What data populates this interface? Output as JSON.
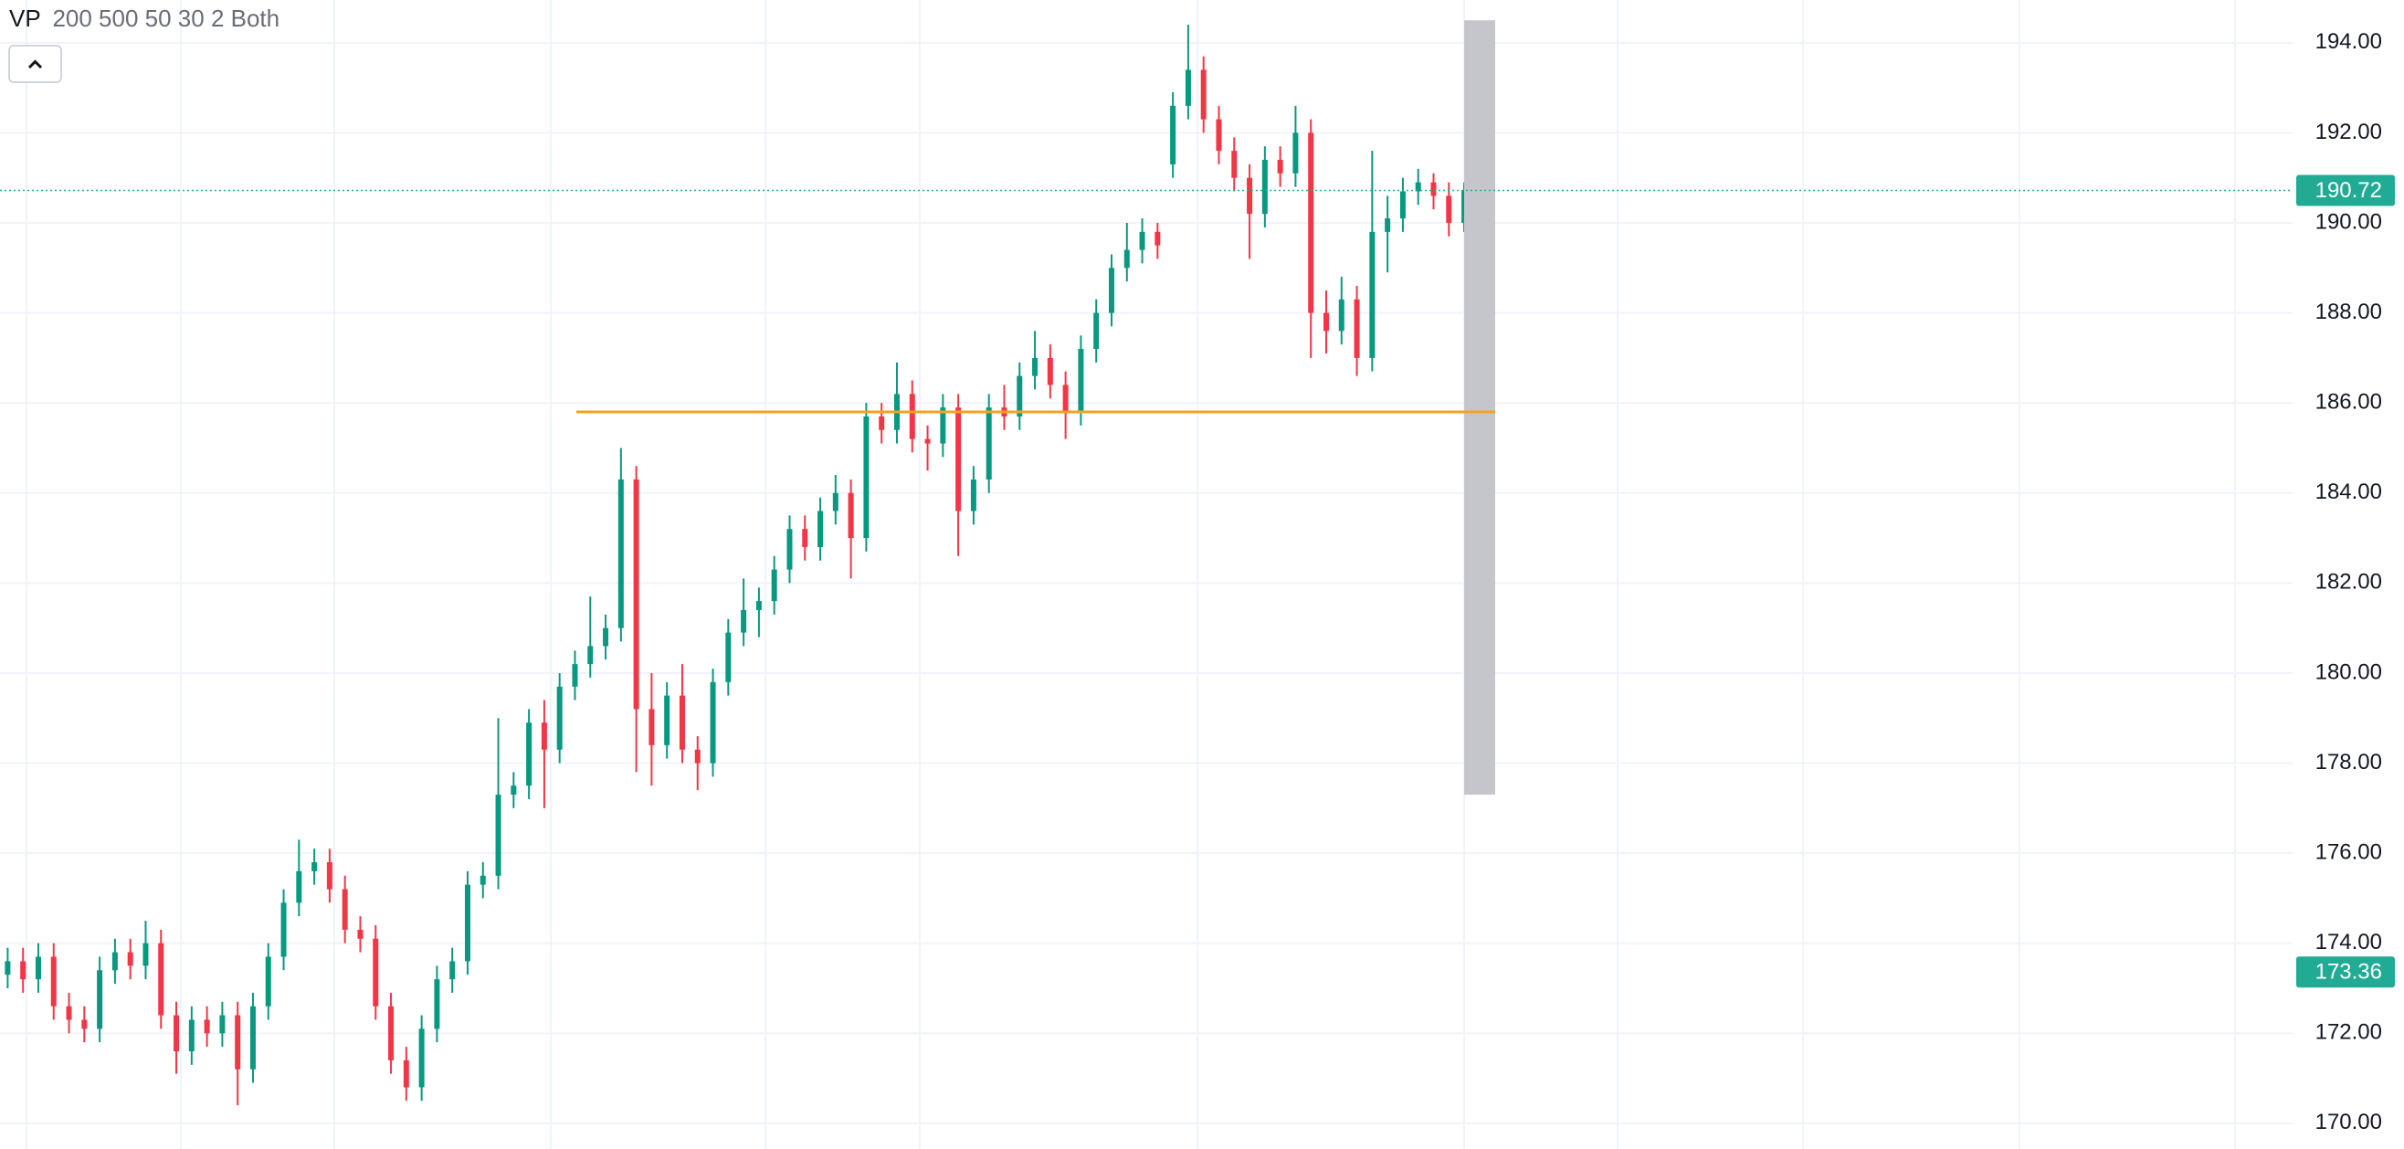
{
  "chart_data": {
    "type": "candlestick",
    "indicator": {
      "name": "VP",
      "params": "200 500 50 30 2 Both"
    },
    "up_color": "#089981",
    "down_color": "#f23645",
    "ylim": [
      169.43,
      194.95
    ],
    "yticks": [
      {
        "value": 170,
        "label": "170.00"
      },
      {
        "value": 172,
        "label": "172.00"
      },
      {
        "value": 174,
        "label": "174.00"
      },
      {
        "value": 176,
        "label": "176.00"
      },
      {
        "value": 178,
        "label": "178.00"
      },
      {
        "value": 180,
        "label": "180.00"
      },
      {
        "value": 182,
        "label": "182.00"
      },
      {
        "value": 184,
        "label": "184.00"
      },
      {
        "value": 186,
        "label": "186.00"
      },
      {
        "value": 188,
        "label": "188.00"
      },
      {
        "value": 190,
        "label": "190.00"
      },
      {
        "value": 192,
        "label": "192.00"
      },
      {
        "value": 194,
        "label": "194.00"
      }
    ],
    "grid": true,
    "open": [
      173.3,
      173.6,
      173.2,
      173.7,
      172.6,
      172.3,
      172.1,
      173.4,
      173.8,
      173.5,
      174.0,
      172.4,
      171.6,
      172.3,
      172.0,
      172.4,
      171.2,
      172.6,
      173.7,
      174.9,
      175.6,
      175.8,
      175.2,
      174.3,
      174.1,
      172.6,
      171.4,
      170.8,
      172.1,
      173.2,
      173.6,
      175.3,
      175.5,
      177.3,
      177.5,
      178.9,
      178.3,
      179.7,
      180.2,
      180.6,
      181.0,
      184.3,
      179.2,
      178.4,
      179.5,
      178.3,
      178.0,
      179.8,
      180.9,
      181.4,
      181.6,
      182.3,
      183.2,
      182.8,
      183.6,
      184.0,
      183.0,
      185.7,
      185.4,
      186.2,
      185.2,
      185.1,
      185.9,
      183.6,
      184.3,
      185.9,
      185.7,
      186.6,
      187.0,
      186.4,
      185.8,
      187.2,
      188.0,
      189.0,
      189.4,
      189.8,
      191.3,
      192.6,
      193.4,
      192.3,
      191.6,
      191.0,
      190.2,
      191.4,
      191.1,
      192.0,
      188.0,
      187.6,
      188.3,
      187.0,
      189.8,
      190.1,
      190.7,
      190.9,
      190.6,
      190.0
    ],
    "high": [
      173.9,
      173.9,
      174.0,
      174.0,
      172.9,
      172.6,
      173.7,
      174.1,
      174.1,
      174.5,
      174.3,
      172.7,
      172.6,
      172.6,
      172.7,
      172.7,
      172.9,
      174.0,
      175.2,
      176.3,
      176.1,
      176.1,
      175.5,
      174.6,
      174.4,
      172.9,
      171.7,
      172.4,
      173.5,
      173.9,
      175.6,
      175.8,
      179.0,
      177.8,
      179.2,
      179.4,
      180.0,
      180.5,
      181.7,
      181.3,
      185.0,
      184.6,
      180.0,
      179.8,
      180.2,
      178.6,
      180.1,
      181.2,
      182.1,
      181.9,
      182.6,
      183.5,
      183.5,
      183.9,
      184.4,
      184.3,
      186.0,
      186.0,
      186.9,
      186.5,
      185.5,
      186.2,
      186.2,
      184.6,
      186.2,
      186.4,
      186.9,
      187.6,
      187.3,
      186.7,
      187.5,
      188.3,
      189.3,
      190.0,
      190.1,
      190.0,
      192.9,
      194.4,
      193.7,
      192.6,
      191.9,
      191.3,
      191.7,
      191.7,
      192.6,
      192.3,
      188.5,
      188.8,
      188.6,
      191.6,
      190.6,
      191.0,
      191.2,
      191.1,
      190.9,
      190.9
    ],
    "low": [
      173.0,
      172.9,
      172.9,
      172.3,
      172.0,
      171.8,
      171.8,
      173.1,
      173.2,
      173.2,
      172.1,
      171.1,
      171.3,
      171.7,
      171.7,
      170.4,
      170.9,
      172.3,
      173.4,
      174.6,
      175.3,
      174.9,
      174.0,
      173.8,
      172.3,
      171.1,
      170.5,
      170.5,
      171.8,
      172.9,
      173.3,
      175.0,
      175.2,
      177.0,
      177.2,
      177.0,
      178.0,
      179.4,
      179.9,
      180.3,
      180.7,
      177.8,
      177.5,
      178.1,
      178.0,
      177.4,
      177.7,
      179.5,
      180.6,
      180.8,
      181.3,
      182.0,
      182.5,
      182.5,
      183.3,
      182.1,
      182.7,
      185.1,
      185.1,
      184.9,
      184.5,
      184.8,
      182.6,
      183.3,
      184.0,
      185.4,
      185.4,
      186.3,
      186.1,
      185.2,
      185.5,
      186.9,
      187.7,
      188.7,
      189.1,
      189.2,
      191.0,
      192.3,
      192.0,
      191.3,
      190.7,
      189.2,
      189.9,
      190.8,
      190.8,
      187.0,
      187.1,
      187.3,
      186.6,
      186.7,
      188.9,
      189.8,
      190.4,
      190.3,
      189.7,
      189.8
    ],
    "close": [
      173.6,
      173.2,
      173.7,
      172.6,
      172.3,
      172.1,
      173.4,
      173.8,
      173.5,
      174.0,
      172.4,
      171.6,
      172.3,
      172.0,
      172.4,
      171.2,
      172.6,
      173.7,
      174.9,
      175.6,
      175.8,
      175.2,
      174.3,
      174.1,
      172.6,
      171.4,
      170.8,
      172.1,
      173.2,
      173.6,
      175.3,
      175.5,
      177.3,
      177.5,
      178.9,
      178.3,
      179.7,
      180.2,
      180.6,
      181.0,
      184.3,
      179.2,
      178.4,
      179.5,
      178.3,
      178.0,
      179.8,
      180.9,
      181.4,
      181.6,
      182.3,
      183.2,
      182.8,
      183.6,
      184.0,
      183.0,
      185.7,
      185.4,
      186.2,
      185.2,
      185.1,
      185.9,
      183.6,
      184.3,
      185.9,
      185.7,
      186.6,
      187.0,
      186.4,
      185.8,
      187.2,
      188.0,
      189.0,
      189.4,
      189.8,
      189.5,
      192.6,
      193.4,
      192.3,
      191.6,
      191.0,
      190.2,
      191.4,
      191.1,
      192.0,
      188.0,
      187.6,
      188.3,
      187.0,
      189.8,
      190.1,
      190.7,
      190.9,
      190.6,
      190.0,
      190.72
    ],
    "horizontal_line": {
      "value": 185.8,
      "color": "#f7a21b"
    },
    "volume_profile": {
      "low": 177.3,
      "high": 194.5,
      "color": "#c5c6cc"
    },
    "price_labels": [
      {
        "value": 190.72,
        "color": "#22ab94"
      },
      {
        "value": 173.36,
        "color": "#22ab94"
      }
    ]
  }
}
